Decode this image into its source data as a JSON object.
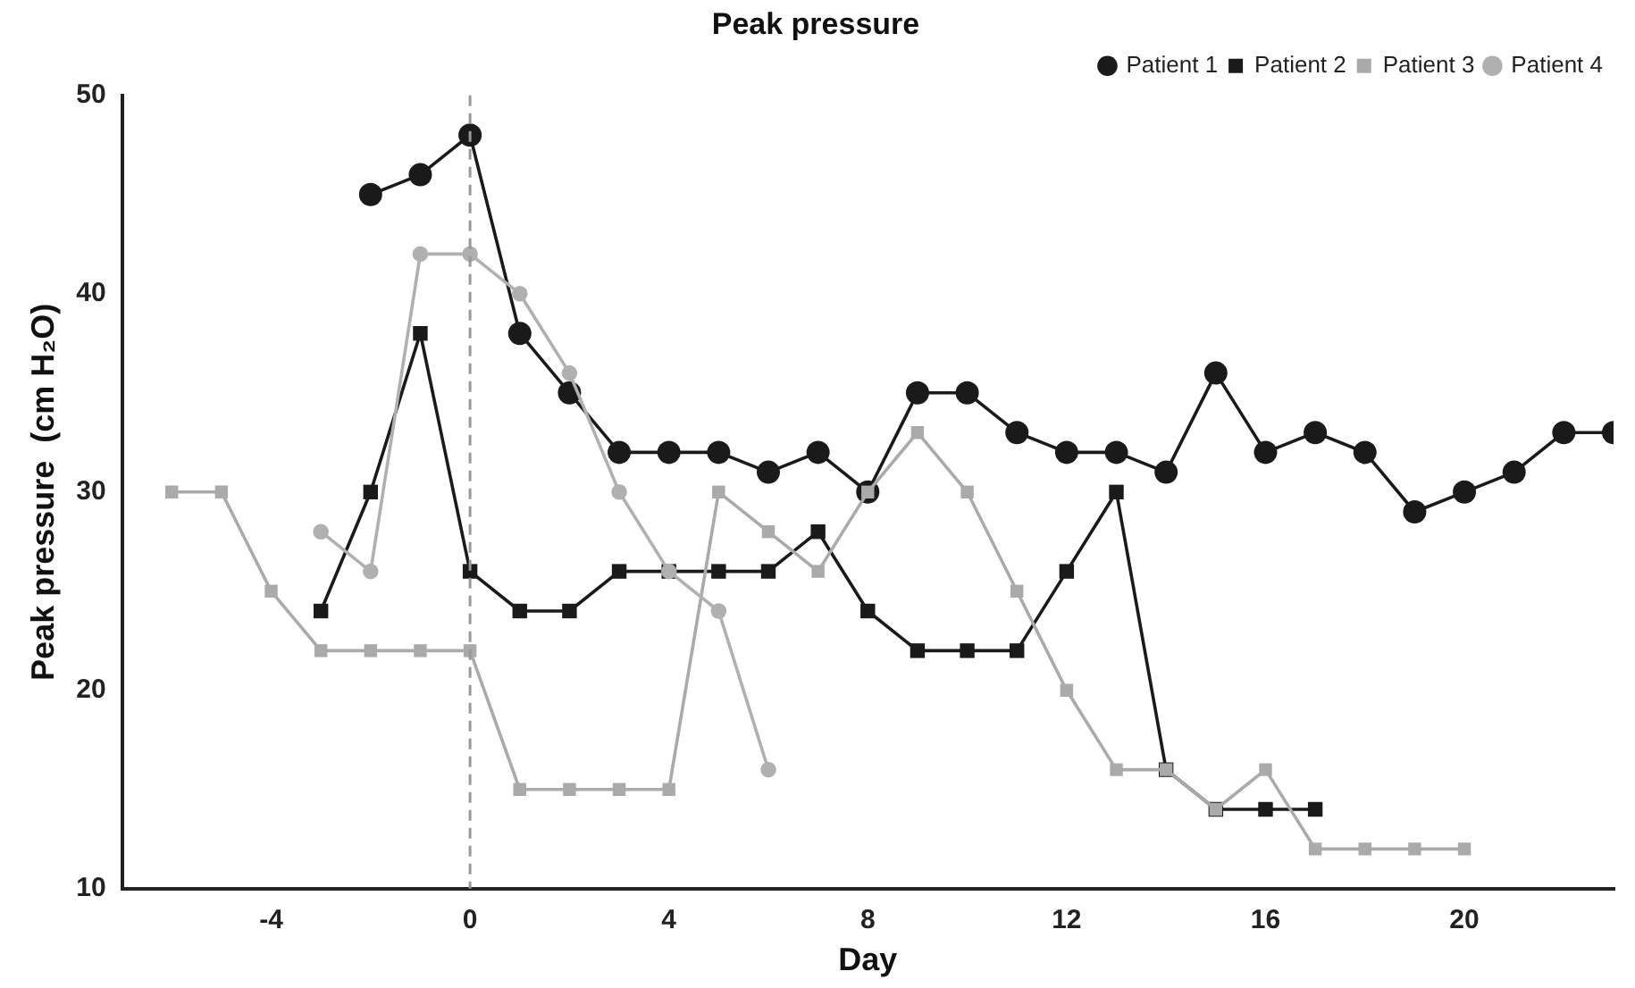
{
  "chart_data": {
    "type": "line",
    "title": "Peak pressure",
    "xlabel": "Day",
    "ylabel": "Peak pressure  (cm H₂O)",
    "xlim": [
      -7,
      23
    ],
    "xticks": [
      -4,
      0,
      4,
      8,
      12,
      16,
      20
    ],
    "ylim": [
      10,
      50
    ],
    "yticks": [
      10,
      20,
      30,
      40,
      50
    ],
    "grid": false,
    "legend": "top right",
    "line_style": "solid",
    "ref_lines": [
      {
        "axis": "x",
        "value": 0,
        "color": "#999999",
        "line_style": "dashed"
      }
    ],
    "series": [
      {
        "name": "Patient 1",
        "color": "#1a1a1a",
        "marker": "circle",
        "x": [
          -2,
          -1,
          0,
          1,
          2,
          3,
          4,
          5,
          6,
          7,
          8,
          9,
          10,
          11,
          12,
          13,
          14,
          15,
          16,
          17,
          18,
          19,
          20,
          21,
          22,
          23
        ],
        "values": [
          45,
          46,
          48,
          38,
          35,
          32,
          32,
          32,
          31,
          32,
          30,
          35,
          35,
          33,
          32,
          32,
          31,
          36,
          32,
          33,
          32,
          29,
          30,
          31,
          33,
          33
        ]
      },
      {
        "name": "Patient 2",
        "color": "#1a1a1a",
        "marker": "square",
        "x": [
          -3,
          -2,
          -1,
          0,
          1,
          2,
          3,
          4,
          5,
          6,
          7,
          8,
          9,
          10,
          11,
          12,
          13,
          14,
          15,
          16,
          17
        ],
        "values": [
          24,
          30,
          38,
          26,
          24,
          24,
          26,
          26,
          26,
          26,
          28,
          24,
          22,
          22,
          22,
          26,
          30,
          16,
          14,
          14,
          14
        ]
      },
      {
        "name": "Patient 3",
        "color": "#aaaaaa",
        "marker": "square",
        "x": [
          -6,
          -5,
          -4,
          -3,
          -2,
          -1,
          0,
          1,
          2,
          3,
          4,
          5,
          6,
          7,
          8,
          9,
          10,
          11,
          12,
          13,
          14,
          15,
          16,
          17,
          18,
          19,
          20
        ],
        "values": [
          30,
          30,
          25,
          22,
          22,
          22,
          22,
          15,
          15,
          15,
          15,
          30,
          28,
          26,
          30,
          33,
          30,
          25,
          20,
          16,
          16,
          14,
          16,
          12,
          12,
          12,
          12
        ]
      },
      {
        "name": "Patient 4",
        "color": "#b0b0b0",
        "marker": "circle",
        "x": [
          -3,
          -2,
          -1,
          0,
          1,
          2,
          3,
          4,
          5,
          6
        ],
        "values": [
          28,
          26,
          42,
          42,
          40,
          36,
          30,
          26,
          24,
          16
        ]
      }
    ]
  }
}
